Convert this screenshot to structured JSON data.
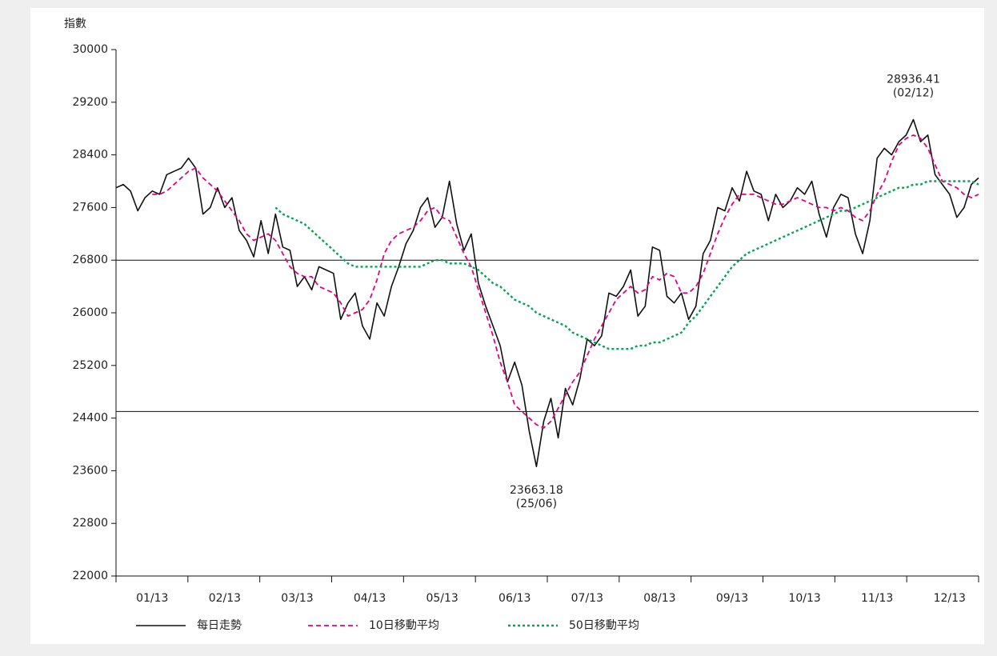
{
  "chart_data": {
    "type": "line",
    "y_label": "指數",
    "categories": [
      null,
      null,
      null,
      null,
      null,
      "01/13",
      null,
      null,
      null,
      null,
      null,
      null,
      null,
      null,
      null,
      "02/13",
      null,
      null,
      null,
      null,
      null,
      null,
      null,
      null,
      null,
      "03/13",
      null,
      null,
      null,
      null,
      null,
      null,
      null,
      null,
      null,
      "04/13",
      null,
      null,
      null,
      null,
      null,
      null,
      null,
      null,
      null,
      "05/13",
      null,
      null,
      null,
      null,
      null,
      null,
      null,
      null,
      null,
      "06/13",
      null,
      null,
      null,
      null,
      null,
      null,
      null,
      null,
      null,
      "07/13",
      null,
      null,
      null,
      null,
      null,
      null,
      null,
      null,
      null,
      "08/13",
      null,
      null,
      null,
      null,
      null,
      null,
      null,
      null,
      null,
      "09/13",
      null,
      null,
      null,
      null,
      null,
      null,
      null,
      null,
      null,
      "10/13",
      null,
      null,
      null,
      null,
      null,
      null,
      null,
      null,
      null,
      "11/13",
      null,
      null,
      null,
      null,
      null,
      null,
      null,
      null,
      null,
      "12/13",
      null,
      null,
      null,
      null
    ],
    "series": [
      {
        "name": "每日走勢",
        "color": "#111111",
        "style": "solid",
        "values": [
          27900,
          27950,
          27850,
          27550,
          27750,
          27850,
          27800,
          28100,
          28150,
          28200,
          28350,
          28200,
          27500,
          27600,
          27900,
          27600,
          27750,
          27250,
          27100,
          26850,
          27400,
          26900,
          27500,
          27000,
          26950,
          26400,
          26550,
          26350,
          26700,
          26650,
          26600,
          25900,
          26150,
          26300,
          25800,
          25600,
          26150,
          25950,
          26400,
          26700,
          27050,
          27250,
          27600,
          27750,
          27300,
          27450,
          28000,
          27350,
          26950,
          27200,
          26450,
          26100,
          25800,
          25500,
          24950,
          25250,
          24900,
          24200,
          23663.18,
          24350,
          24700,
          24100,
          24850,
          24600,
          25000,
          25600,
          25500,
          25650,
          26300,
          26250,
          26400,
          26650,
          25950,
          26100,
          27000,
          26950,
          26250,
          26150,
          26300,
          25900,
          26100,
          26900,
          27100,
          27600,
          27550,
          27900,
          27700,
          28150,
          27850,
          27800,
          27400,
          27800,
          27600,
          27700,
          27900,
          27800,
          28000,
          27500,
          27150,
          27600,
          27800,
          27750,
          27200,
          26900,
          27400,
          28350,
          28500,
          28400,
          28600,
          28700,
          28936.41,
          28600,
          28700,
          28100,
          27950,
          27800,
          27450,
          27600,
          27950,
          28050
        ]
      },
      {
        "name": "10日移動平均",
        "color": "#e6007e",
        "style": "dashed",
        "values": [
          null,
          null,
          null,
          null,
          null,
          27800,
          27800,
          27850,
          27950,
          28050,
          28150,
          28200,
          28050,
          27950,
          27850,
          27700,
          27550,
          27400,
          27200,
          27100,
          27150,
          27200,
          27100,
          26900,
          26700,
          26600,
          26550,
          26550,
          26400,
          26350,
          26300,
          26150,
          25950,
          26000,
          26050,
          26200,
          26500,
          26900,
          27100,
          27200,
          27250,
          27300,
          27400,
          27550,
          27600,
          27450,
          27400,
          27150,
          26900,
          26700,
          26350,
          26000,
          25650,
          25250,
          24950,
          24600,
          24500,
          24400,
          24300,
          24250,
          24350,
          24550,
          24750,
          24950,
          25100,
          25350,
          25600,
          25800,
          26000,
          26200,
          26300,
          26400,
          26300,
          26350,
          26550,
          26500,
          26600,
          26550,
          26300,
          26300,
          26400,
          26600,
          26900,
          27200,
          27450,
          27650,
          27800,
          27800,
          27800,
          27750,
          27700,
          27650,
          27650,
          27700,
          27750,
          27700,
          27650,
          27600,
          27600,
          27550,
          27600,
          27550,
          27450,
          27400,
          27550,
          27800,
          28000,
          28300,
          28550,
          28650,
          28700,
          28650,
          28500,
          28250,
          28000,
          27950,
          27900,
          27800,
          27750,
          27800
        ]
      },
      {
        "name": "50日移動平均",
        "color": "#00a651",
        "style": "dotted",
        "values": [
          null,
          null,
          null,
          null,
          null,
          null,
          null,
          null,
          null,
          null,
          null,
          null,
          null,
          null,
          null,
          null,
          null,
          null,
          null,
          null,
          null,
          null,
          27600,
          27500,
          27450,
          27400,
          27350,
          27250,
          27150,
          27050,
          26950,
          26850,
          26750,
          26700,
          26700,
          26700,
          26700,
          26700,
          26700,
          26700,
          26700,
          26700,
          26700,
          26750,
          26800,
          26800,
          26750,
          26750,
          26750,
          26700,
          26650,
          26550,
          26450,
          26400,
          26300,
          26200,
          26150,
          26100,
          26000,
          25950,
          25900,
          25850,
          25800,
          25700,
          25650,
          25600,
          25550,
          25500,
          25450,
          25450,
          25450,
          25450,
          25500,
          25500,
          25550,
          25550,
          25600,
          25650,
          25700,
          25850,
          25950,
          26100,
          26250,
          26400,
          26550,
          26700,
          26800,
          26900,
          26950,
          27000,
          27050,
          27100,
          27150,
          27200,
          27250,
          27300,
          27350,
          27400,
          27450,
          27500,
          27550,
          27550,
          27600,
          27650,
          27700,
          27750,
          27800,
          27850,
          27900,
          27900,
          27950,
          27950,
          28000,
          28000,
          28000,
          28000,
          28000,
          28000,
          28000,
          27950
        ]
      }
    ],
    "annotations": [
      {
        "value": 23663.18,
        "date": "(25/06)"
      },
      {
        "value": 28936.41,
        "date": "(02/12)"
      }
    ],
    "reference_lines": [
      26800,
      24500
    ],
    "ylim": [
      22000,
      30000
    ],
    "yticks": [
      22000,
      22800,
      23600,
      24400,
      25200,
      26000,
      26800,
      27600,
      28400,
      29200,
      30000
    ]
  }
}
